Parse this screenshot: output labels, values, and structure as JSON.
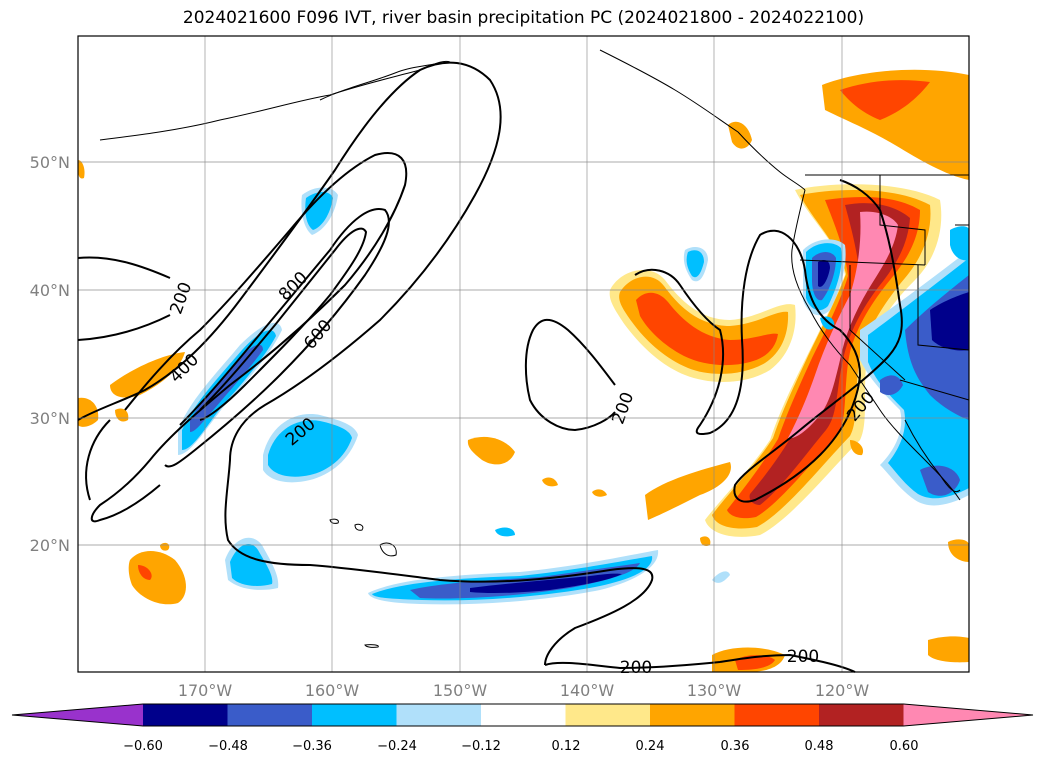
{
  "title": "2024021600 F096 IVT, river basin precipitation PC (2024021800 - 2024022100)",
  "map": {
    "lat_ticks": [
      "50°N",
      "40°N",
      "30°N",
      "20°N"
    ],
    "lon_ticks": [
      "170°W",
      "160°W",
      "150°W",
      "140°W",
      "130°W",
      "120°W"
    ],
    "contour_labels": [
      "200",
      "400",
      "800",
      "600",
      "200",
      "200",
      "200",
      "200",
      "200"
    ],
    "contour_levels": [
      200,
      400,
      600,
      800
    ]
  },
  "colorbar": {
    "ticks": [
      "−0.60",
      "−0.48",
      "−0.36",
      "−0.24",
      "−0.12",
      "0.12",
      "0.24",
      "0.36",
      "0.48",
      "0.60"
    ],
    "colors": [
      "#9932cc",
      "#00008b",
      "#3a5cc9",
      "#00bfff",
      "#b0e0fa",
      "#ffffff",
      "#ffe88a",
      "#ffa500",
      "#ff4500",
      "#b22222",
      "#ff88b2"
    ]
  },
  "colors": {
    "neg_strong": "#00008b",
    "neg_med": "#3a5cc9",
    "neg_light": "#00bfff",
    "neg_faint": "#b0e0fa",
    "pos_faint": "#ffe88a",
    "pos_light": "#ffa500",
    "pos_med": "#ff4500",
    "pos_strong": "#b22222",
    "pos_max": "#ff88b2"
  }
}
